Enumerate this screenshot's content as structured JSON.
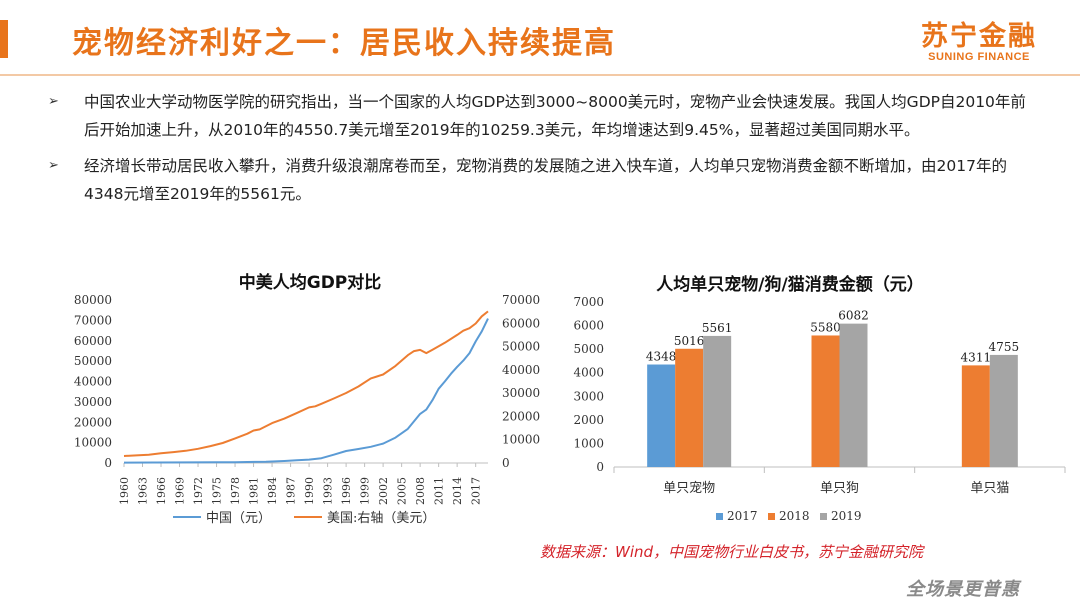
{
  "header": {
    "title": "宠物经济利好之一：居民收入持续提高",
    "logo_cn": "苏宁金融",
    "logo_en": "SUNING FINANCE"
  },
  "bullets": [
    {
      "mark": "➢",
      "text": "中国农业大学动物医学院的研究指出，当一个国家的人均GDP达到3000~8000美元时，宠物产业会快速发展。我国人均GDP自2010年前后开始加速上升，从2010年的4550.7美元增至2019年的10259.3美元，年均增速达到9.45%，显著超过美国同期水平。"
    },
    {
      "mark": "➢",
      "text": "经济增长带动居民收入攀升，消费升级浪潮席卷而至，宠物消费的发展随之进入快车道，人均单只宠物消费金额不断增加，由2017年的4348元增至2019年的5561元。"
    }
  ],
  "chart_data": [
    {
      "type": "line",
      "title": "中美人均GDP对比",
      "x_ticks": [
        "1960",
        "1963",
        "1966",
        "1969",
        "1972",
        "1975",
        "1978",
        "1981",
        "1984",
        "1987",
        "1990",
        "1993",
        "1996",
        "1999",
        "2002",
        "2005",
        "2008",
        "2011",
        "2014",
        "2017"
      ],
      "x_range": [
        1960,
        2019
      ],
      "ylim_left": [
        0,
        80000
      ],
      "yticks_left": [
        "0",
        "10000",
        "20000",
        "30000",
        "40000",
        "50000",
        "60000",
        "70000",
        "80000"
      ],
      "ylim_right": [
        0,
        70000
      ],
      "yticks_right": [
        "0",
        "10000",
        "20000",
        "30000",
        "40000",
        "50000",
        "60000",
        "70000"
      ],
      "series": [
        {
          "name": "中国（元）",
          "axis": "left",
          "color": "#5B9BD5",
          "points": [
            [
              1960,
              218
            ],
            [
              1965,
              240
            ],
            [
              1970,
              275
            ],
            [
              1975,
              330
            ],
            [
              1978,
              385
            ],
            [
              1980,
              468
            ],
            [
              1983,
              582
            ],
            [
              1986,
              960
            ],
            [
              1988,
              1366
            ],
            [
              1990,
              1663
            ],
            [
              1992,
              2334
            ],
            [
              1994,
              4081
            ],
            [
              1996,
              5898
            ],
            [
              1998,
              6860
            ],
            [
              2000,
              7942
            ],
            [
              2002,
              9506
            ],
            [
              2004,
              12487
            ],
            [
              2006,
              16738
            ],
            [
              2008,
              24121
            ],
            [
              2009,
              26222
            ],
            [
              2010,
              30876
            ],
            [
              2011,
              36403
            ],
            [
              2012,
              40007
            ],
            [
              2013,
              43852
            ],
            [
              2014,
              47203
            ],
            [
              2015,
              50251
            ],
            [
              2016,
              53935
            ],
            [
              2017,
              59660
            ],
            [
              2018,
              64644
            ],
            [
              2019,
              70892
            ]
          ]
        },
        {
          "name": "美国:右轴（美元）",
          "axis": "right",
          "color": "#ED7D31",
          "points": [
            [
              1960,
              3007
            ],
            [
              1962,
              3243
            ],
            [
              1964,
              3574
            ],
            [
              1966,
              4146
            ],
            [
              1968,
              4696
            ],
            [
              1970,
              5234
            ],
            [
              1972,
              6094
            ],
            [
              1974,
              7242
            ],
            [
              1976,
              8592
            ],
            [
              1978,
              10565
            ],
            [
              1980,
              12575
            ],
            [
              1981,
              13976
            ],
            [
              1982,
              14434
            ],
            [
              1984,
              17121
            ],
            [
              1986,
              19071
            ],
            [
              1988,
              21418
            ],
            [
              1990,
              23889
            ],
            [
              1991,
              24342
            ],
            [
              1992,
              25419
            ],
            [
              1994,
              27695
            ],
            [
              1996,
              30068
            ],
            [
              1998,
              32854
            ],
            [
              2000,
              36330
            ],
            [
              2001,
              37134
            ],
            [
              2002,
              38023
            ],
            [
              2004,
              41712
            ],
            [
              2006,
              46302
            ],
            [
              2007,
              48050
            ],
            [
              2008,
              48570
            ],
            [
              2009,
              47195
            ],
            [
              2010,
              48651
            ],
            [
              2012,
              51603
            ],
            [
              2014,
              55033
            ],
            [
              2015,
              56803
            ],
            [
              2016,
              57904
            ],
            [
              2017,
              59928
            ],
            [
              2018,
              62997
            ],
            [
              2019,
              65095
            ]
          ]
        }
      ]
    },
    {
      "type": "bar",
      "title": "人均单只宠物/狗/猫消费金额（元）",
      "categories": [
        "单只宠物",
        "单只狗",
        "单只猫"
      ],
      "ylim": [
        0,
        7000
      ],
      "yticks": [
        "0",
        "1000",
        "2000",
        "3000",
        "4000",
        "5000",
        "6000",
        "7000"
      ],
      "series": [
        {
          "name": "2017",
          "color": "#5B9BD5",
          "values": [
            4348,
            null,
            null
          ]
        },
        {
          "name": "2018",
          "color": "#ED7D31",
          "values": [
            5016,
            5580,
            4311
          ]
        },
        {
          "name": "2019",
          "color": "#A5A5A5",
          "values": [
            5561,
            6082,
            4755
          ]
        }
      ]
    }
  ],
  "footer": {
    "source": "数据来源：Wind，中国宠物行业白皮书，苏宁金融研究院",
    "slogan": "全场景更普惠"
  }
}
